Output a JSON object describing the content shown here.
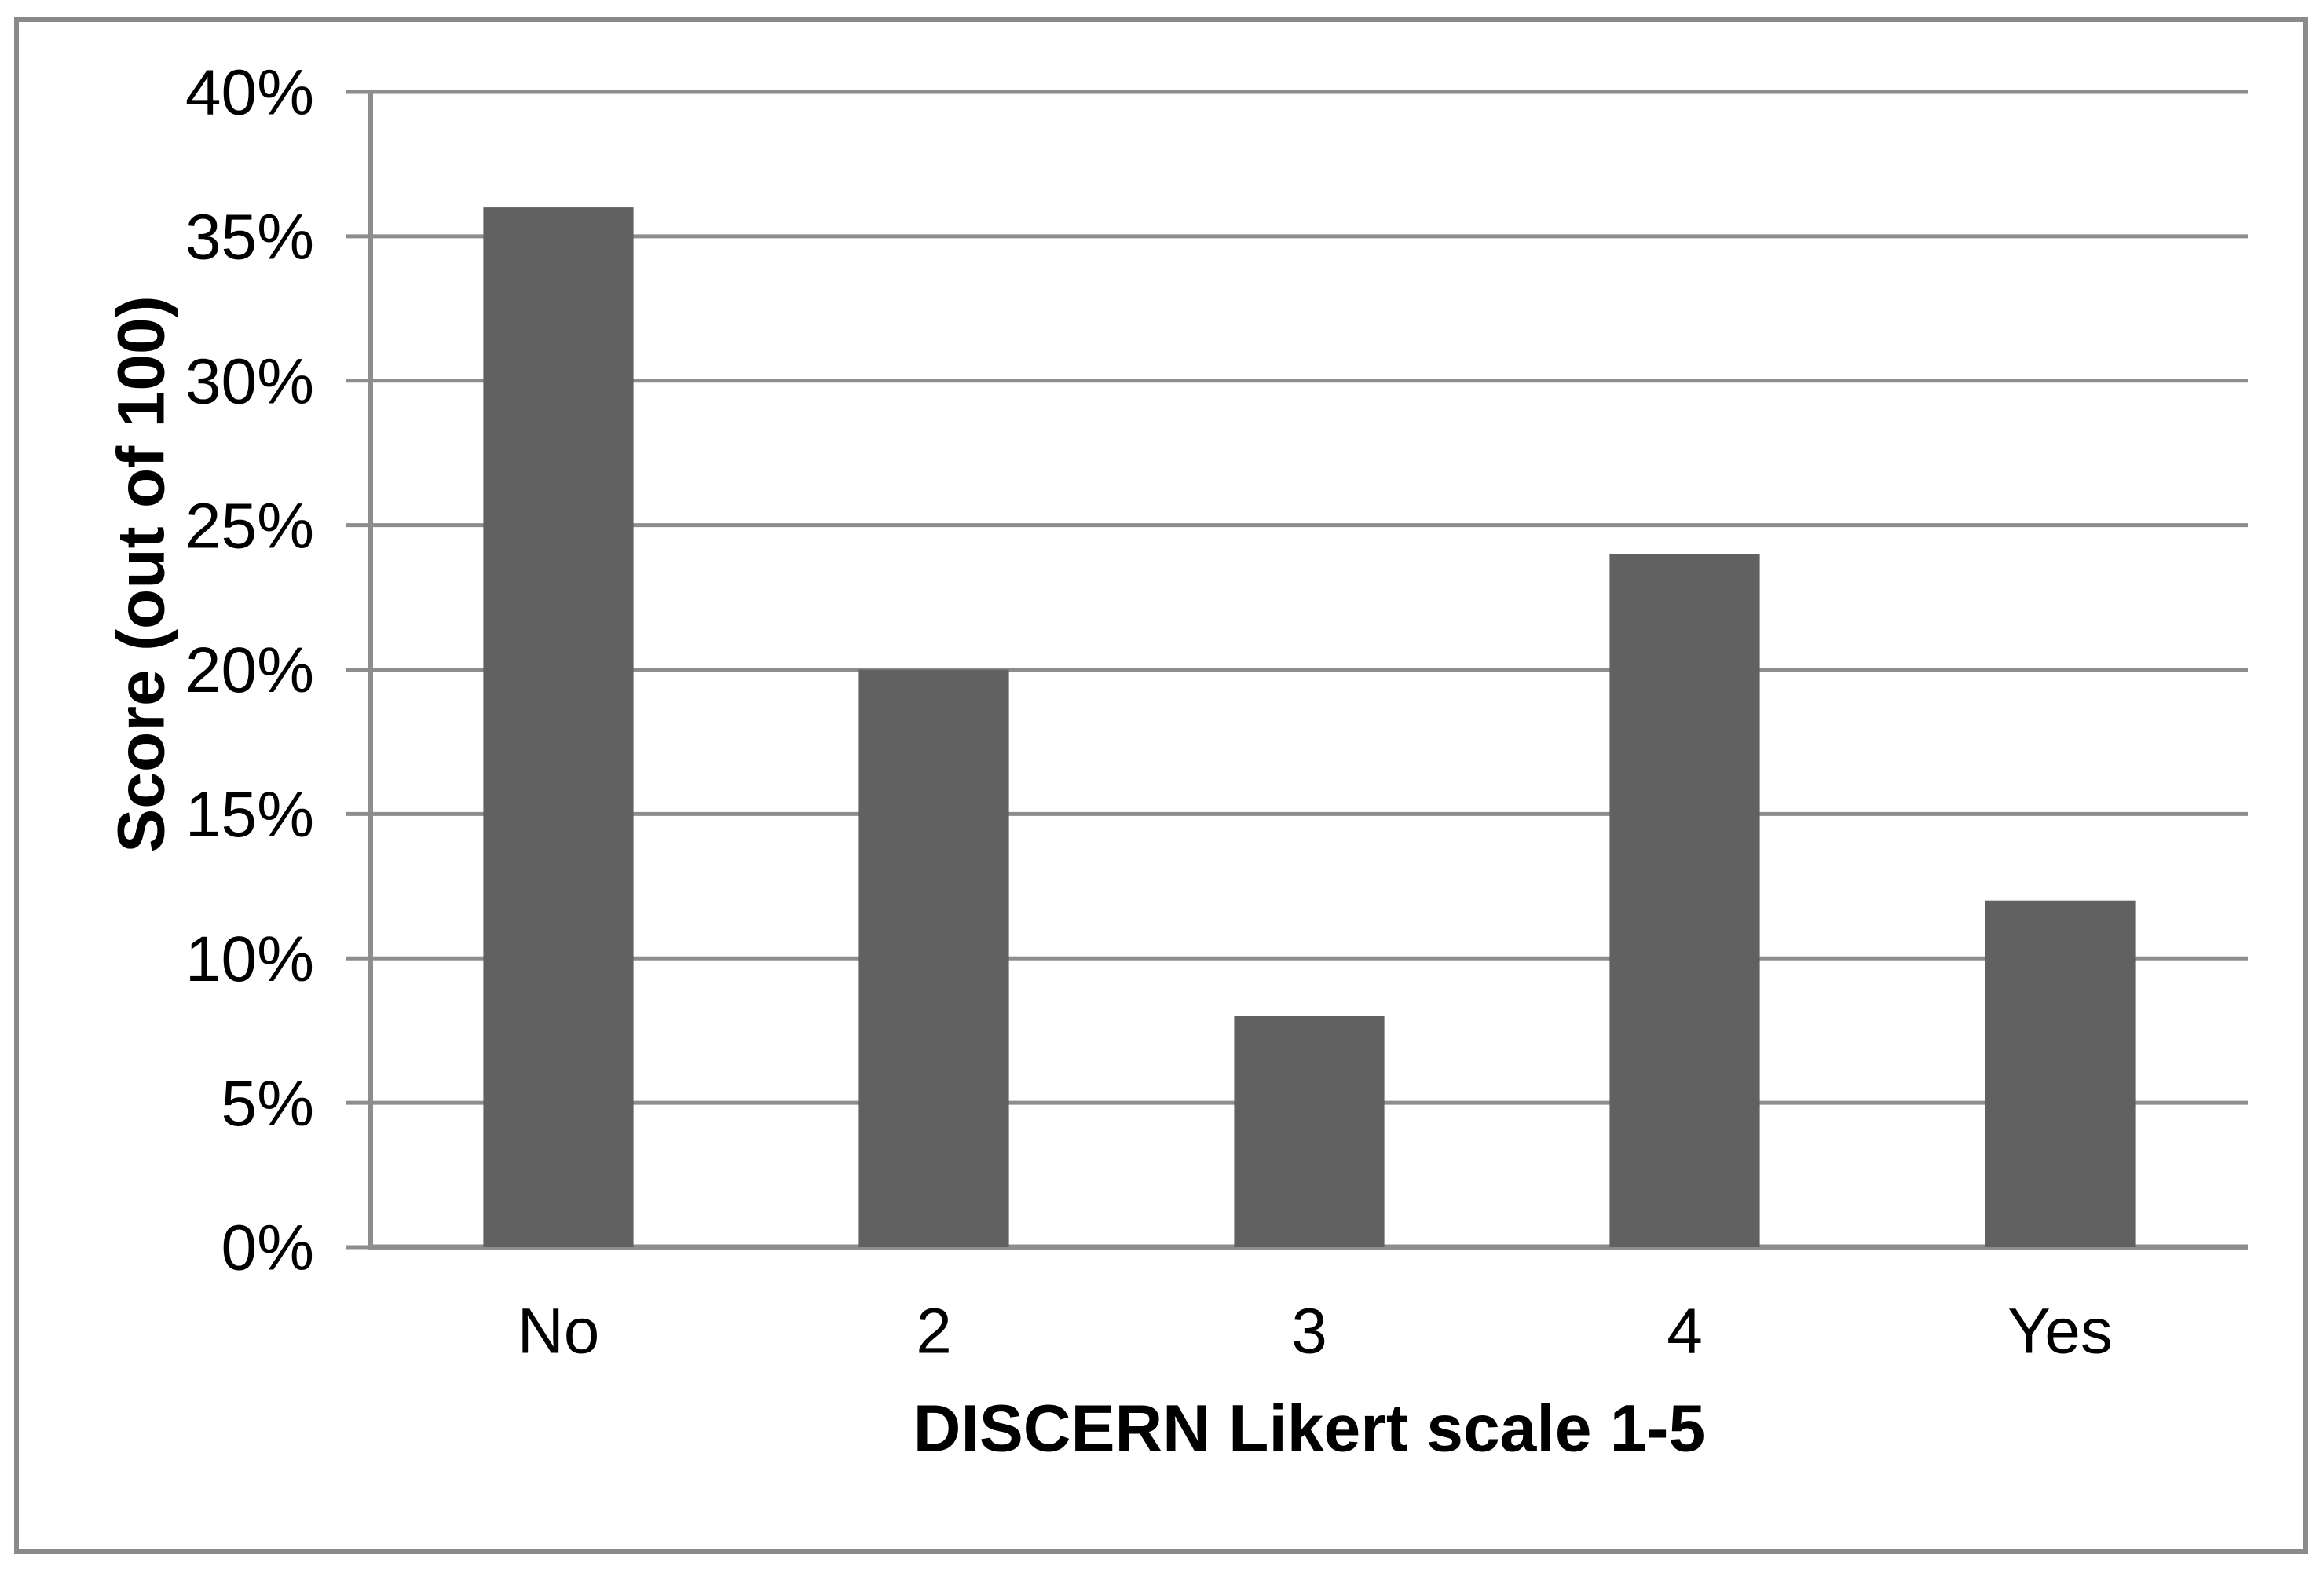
{
  "figure": {
    "background": "#ffffff",
    "border_color": "#8a8a8a",
    "text_color": "#000000"
  },
  "chart_data": {
    "type": "bar",
    "title": "",
    "xlabel": "DISCERN Likert scale 1-5",
    "ylabel": "Score (out of 100)",
    "categories": [
      "No",
      "2",
      "3",
      "4",
      "Yes"
    ],
    "values": [
      36,
      20,
      8,
      24,
      12
    ],
    "value_unit": "%",
    "ylim": [
      0,
      40
    ],
    "ytick_step": 5,
    "ytick_labels": [
      "0%",
      "5%",
      "10%",
      "15%",
      "20%",
      "25%",
      "30%",
      "35%",
      "40%"
    ],
    "grid": true,
    "legend": "none",
    "bar_color": "#616161",
    "gridline_color": "#8d8d8d",
    "axis_color": "#8a8a8a"
  }
}
